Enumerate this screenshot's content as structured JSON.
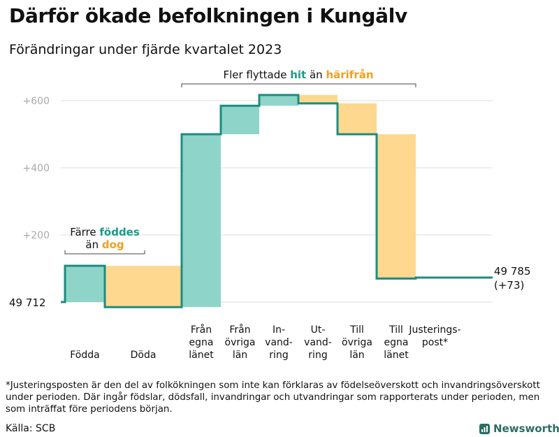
{
  "header": {
    "title": "Därför ökade befolkningen i Kungälv",
    "subtitle": "Förändringar under fjärde kvartalet 2023"
  },
  "colors": {
    "teal": "#1a9a86",
    "teal_fill": "#8fd4c9",
    "orange": "#f0a020",
    "orange_fill": "#fdd88e",
    "line": "#1c8c80",
    "grid": "#dddddd",
    "axis_text": "#aaaaaa"
  },
  "chart_data": {
    "type": "waterfall",
    "base_value": 49712,
    "ylim": [
      -20,
      640
    ],
    "yticks": [
      {
        "value": 200,
        "label": "+200"
      },
      {
        "value": 400,
        "label": "+400"
      },
      {
        "value": 600,
        "label": "+600"
      }
    ],
    "start_label": "49  712",
    "end_label": [
      "49 785",
      "(+73)"
    ],
    "steps": [
      {
        "name": "Födda",
        "label": [
          "Födda"
        ],
        "from": 0,
        "to": 108,
        "kind": "increase"
      },
      {
        "name": "Döda",
        "label": [
          "Döda"
        ],
        "from": 108,
        "to": -15,
        "kind": "decrease"
      },
      {
        "name": "Från egna länet",
        "label": [
          "Från",
          "egna",
          "länet"
        ],
        "from": -15,
        "to": 500,
        "kind": "increase"
      },
      {
        "name": "Från övriga län",
        "label": [
          "Från",
          "övriga",
          "län"
        ],
        "from": 500,
        "to": 585,
        "kind": "increase"
      },
      {
        "name": "Invandring",
        "label": [
          "In-",
          "vand-",
          "ring"
        ],
        "from": 585,
        "to": 617,
        "kind": "increase"
      },
      {
        "name": "Utvandring",
        "label": [
          "Ut-",
          "vand-",
          "ring"
        ],
        "from": 617,
        "to": 592,
        "kind": "decrease"
      },
      {
        "name": "Till övriga län",
        "label": [
          "Till",
          "övriga",
          "län"
        ],
        "from": 592,
        "to": 500,
        "kind": "decrease"
      },
      {
        "name": "Till egna länet",
        "label": [
          "Till",
          "egna",
          "länet"
        ],
        "from": 500,
        "to": 70,
        "kind": "decrease"
      },
      {
        "name": "Justeringspost*",
        "label": [
          "Justerings-",
          "post*"
        ],
        "from": 70,
        "to": 73,
        "kind": "adjustment"
      }
    ],
    "annotations": {
      "births": {
        "line1": "Färre",
        "highlight1": "föddes",
        "line2": "än",
        "highlight2": "dog"
      },
      "migration": {
        "prefix": "Fler flyttade",
        "highlight1": "hit",
        "middle": "än",
        "highlight2": "härifrån"
      }
    }
  },
  "footer": {
    "footnote": "*Justeringsposten är den del av folkökningen som inte kan förklaras av födelseöverskott och invandringsöverskott under perioden. Där ingår födslar, dödsfall, invandringar och utvandringar som rapporterats under perioden, men som inträffat före periodens början.",
    "source": "Källa: SCB",
    "brand": "Newsworthy"
  }
}
